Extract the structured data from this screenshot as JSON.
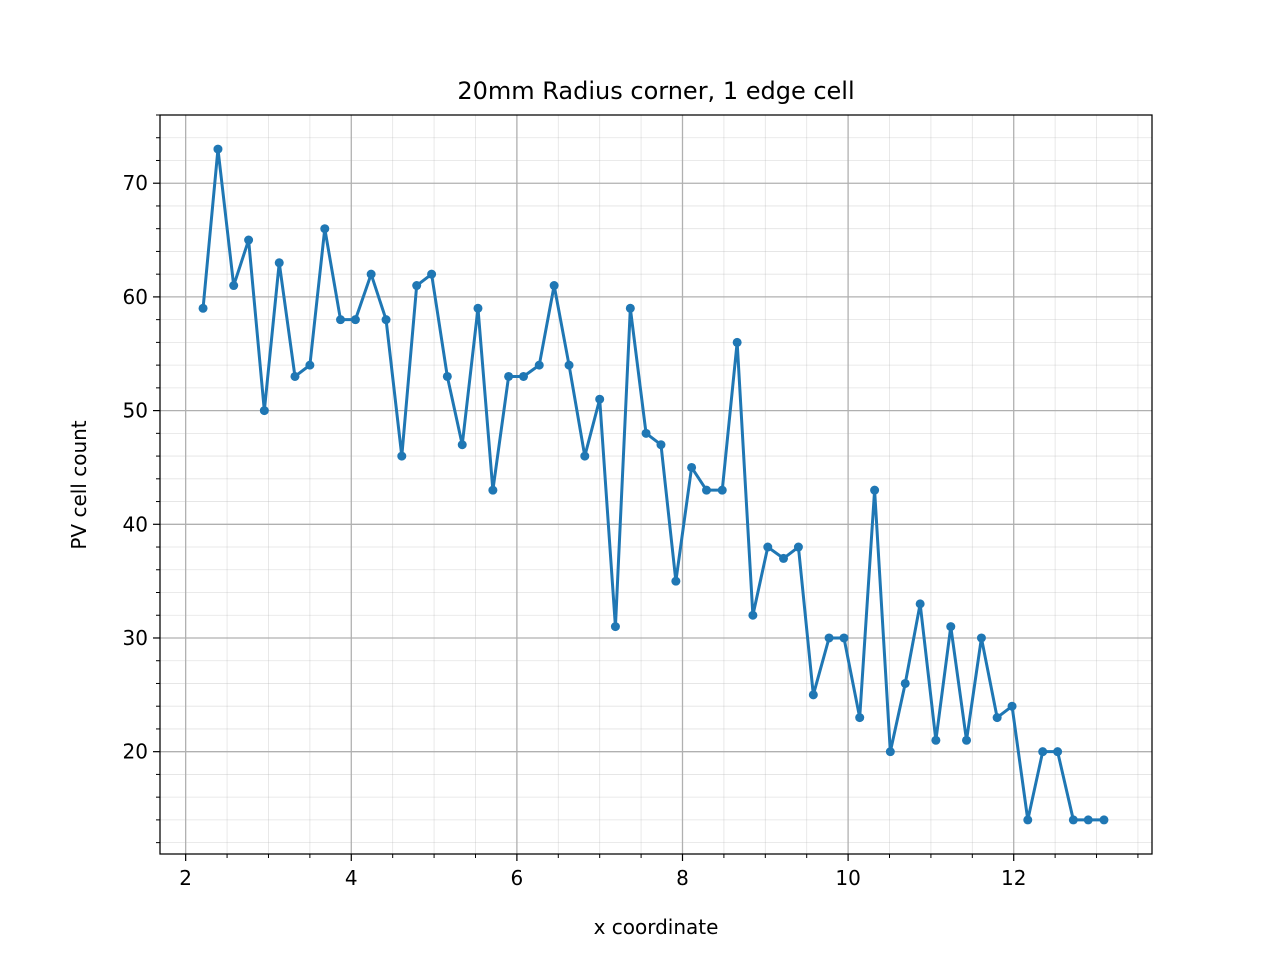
{
  "chart_data": {
    "type": "line",
    "title": "20mm Radius corner, 1 edge cell",
    "xlabel": "x coordinate",
    "ylabel": "PV cell count",
    "xlim": [
      1.69,
      13.67
    ],
    "ylim": [
      11.0,
      76.0
    ],
    "xticks": [
      2,
      4,
      6,
      8,
      10,
      12
    ],
    "yticks": [
      20,
      30,
      40,
      50,
      60,
      70
    ],
    "grid": {
      "major": true,
      "minor": true
    },
    "color": "#1f77b4",
    "marker": "circle",
    "series": [
      {
        "x": [
          2.21,
          2.39,
          2.58,
          2.76,
          2.95,
          3.13,
          3.32,
          3.5,
          3.68,
          3.87,
          4.05,
          4.24,
          4.42,
          4.61,
          4.79,
          4.97,
          5.16,
          5.34,
          5.53,
          5.71,
          5.9,
          6.08,
          6.27,
          6.45,
          6.63,
          6.82,
          7.0,
          7.19,
          7.37,
          7.56,
          7.74,
          7.92,
          8.11,
          8.29,
          8.48,
          8.66,
          8.85,
          9.03,
          9.22,
          9.4,
          9.58,
          9.77,
          9.95,
          10.14,
          10.32,
          10.51,
          10.69,
          10.87,
          11.06,
          11.24,
          11.43,
          11.61,
          11.8,
          11.98,
          12.17,
          12.35,
          12.53,
          12.72,
          12.9,
          13.09
        ],
        "y": [
          59,
          73,
          61,
          65,
          50,
          63,
          53,
          54,
          66,
          58,
          58,
          62,
          58,
          46,
          61,
          62,
          53,
          47,
          59,
          43,
          53,
          53,
          54,
          61,
          54,
          46,
          51,
          31,
          59,
          48,
          47,
          35,
          45,
          43,
          43,
          56,
          32,
          38,
          37,
          38,
          25,
          30,
          30,
          23,
          43,
          20,
          26,
          33,
          21,
          31,
          21,
          30,
          23,
          24,
          14,
          20,
          20,
          14,
          14,
          14
        ]
      }
    ]
  }
}
